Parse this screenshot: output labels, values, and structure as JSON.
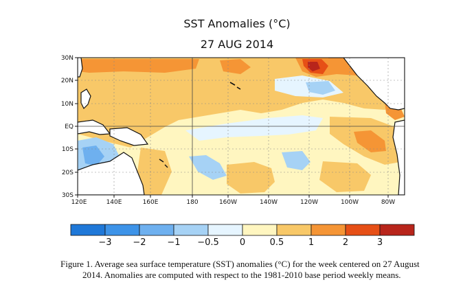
{
  "title": "SST Anomalies (°C)",
  "date": "27 AUG 2014",
  "map": {
    "lat_labels": [
      "30N",
      "20N",
      "10N",
      "EQ",
      "10S",
      "20S",
      "30S"
    ],
    "lon_labels": [
      "120E",
      "140E",
      "160E",
      "180",
      "160W",
      "140W",
      "120W",
      "100W",
      "80W"
    ]
  },
  "colorbar": {
    "labels": [
      "−3",
      "−2",
      "−1",
      "−0.5",
      "0",
      "0.5",
      "1",
      "2",
      "3"
    ],
    "colors": [
      "#1f78d8",
      "#3d93e8",
      "#6eb0ef",
      "#a6d2f5",
      "#e6f5ff",
      "#fff6c0",
      "#f8c868",
      "#f59535",
      "#e64f16",
      "#b8251b"
    ]
  },
  "caption": {
    "line1": "Figure 1. Average sea surface temperature (SST) anomalies (°C) for the week centered on 27 August",
    "line2": "2014.   Anomalies are computed with respect to the 1981-2010 base period weekly means."
  }
}
